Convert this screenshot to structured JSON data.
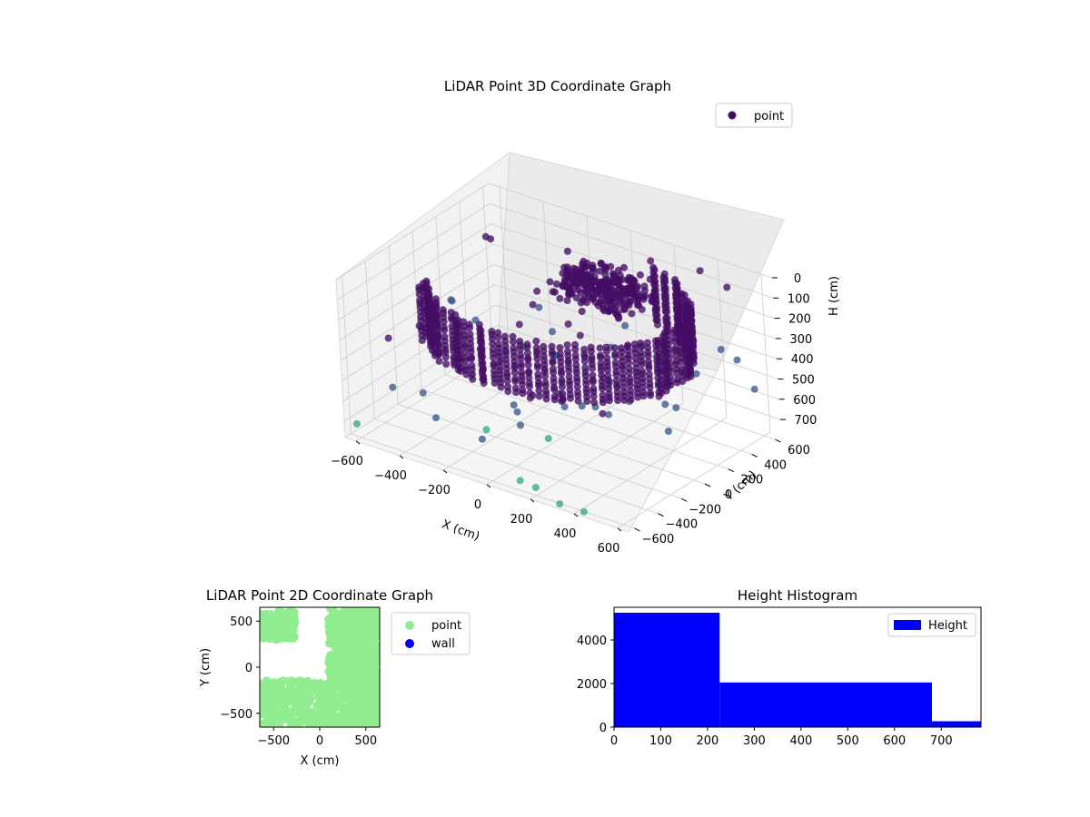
{
  "colors": {
    "point_3d_dark": "#440d64",
    "point_3d_mid": "#3b5a8c",
    "point_3d_teal": "#3aa88a",
    "point_2d": "#90ee90",
    "wall": "#0000ff",
    "hist_bar": "#0000ff",
    "pane": "#f2f2f2",
    "grid": "#cccccc"
  },
  "chart_data": [
    {
      "id": "lidar3d",
      "type": "scatter",
      "title": "LiDAR Point 3D Coordinate Graph",
      "xlabel": "X (cm)",
      "ylabel": "Y (cm)",
      "zlabel": "H (cm)",
      "x_ticks": [
        -600,
        -400,
        -200,
        0,
        200,
        400,
        600
      ],
      "y_ticks": [
        -600,
        -400,
        -200,
        0,
        200,
        400,
        600
      ],
      "z_ticks": [
        0,
        100,
        200,
        300,
        400,
        500,
        600,
        700
      ],
      "xlim": [
        -650,
        650
      ],
      "ylim": [
        -650,
        650
      ],
      "zlim": [
        0,
        780
      ],
      "z_inverted": true,
      "grid": true,
      "legend": {
        "placement": "top-right",
        "entries": [
          "point"
        ]
      },
      "series": [
        {
          "name": "point",
          "description_shape": "curved wall arc of points sweeping around the sensor at heights 0-300 cm, plus scattered outliers",
          "outliers": [
            {
              "x": -620,
              "y": -600,
              "h": 720
            },
            {
              "x": 100,
              "y": -550,
              "h": 760
            },
            {
              "x": 200,
              "y": -600,
              "h": 740
            },
            {
              "x": 330,
              "y": -640,
              "h": 760
            },
            {
              "x": 430,
              "y": -620,
              "h": 770
            },
            {
              "x": -400,
              "y": 200,
              "h": 20
            },
            {
              "x": -100,
              "y": 300,
              "h": 10
            },
            {
              "x": 200,
              "y": 450,
              "h": 5
            },
            {
              "x": 400,
              "y": 500,
              "h": 0
            },
            {
              "x": 550,
              "y": 450,
              "h": 10
            }
          ]
        }
      ]
    },
    {
      "id": "lidar2d",
      "type": "scatter",
      "title": "LiDAR Point 2D Coordinate Graph",
      "xlabel": "X (cm)",
      "ylabel": "Y (cm)",
      "x_ticks": [
        -500,
        0,
        500
      ],
      "y_ticks": [
        -500,
        0,
        500
      ],
      "xlim": [
        -650,
        650
      ],
      "ylim": [
        -650,
        650
      ],
      "legend": {
        "placement": "outside-right",
        "entries": [
          "point",
          "wall"
        ]
      },
      "series": [
        {
          "name": "point",
          "color": "#90ee90"
        },
        {
          "name": "wall",
          "color": "#0000ff",
          "values": []
        }
      ]
    },
    {
      "id": "height_hist",
      "type": "bar",
      "title": "Height Histogram",
      "x_ticks": [
        0,
        100,
        200,
        300,
        400,
        500,
        600,
        700
      ],
      "y_ticks": [
        0,
        2000,
        4000
      ],
      "xlim": [
        0,
        785
      ],
      "ylim": [
        0,
        5500
      ],
      "legend": {
        "placement": "top-right",
        "entries": [
          "Height"
        ]
      },
      "bins": [
        {
          "from": 0,
          "to": 226,
          "count": 5250
        },
        {
          "from": 226,
          "to": 680,
          "count": 2050
        },
        {
          "from": 680,
          "to": 785,
          "count": 270
        }
      ]
    }
  ]
}
